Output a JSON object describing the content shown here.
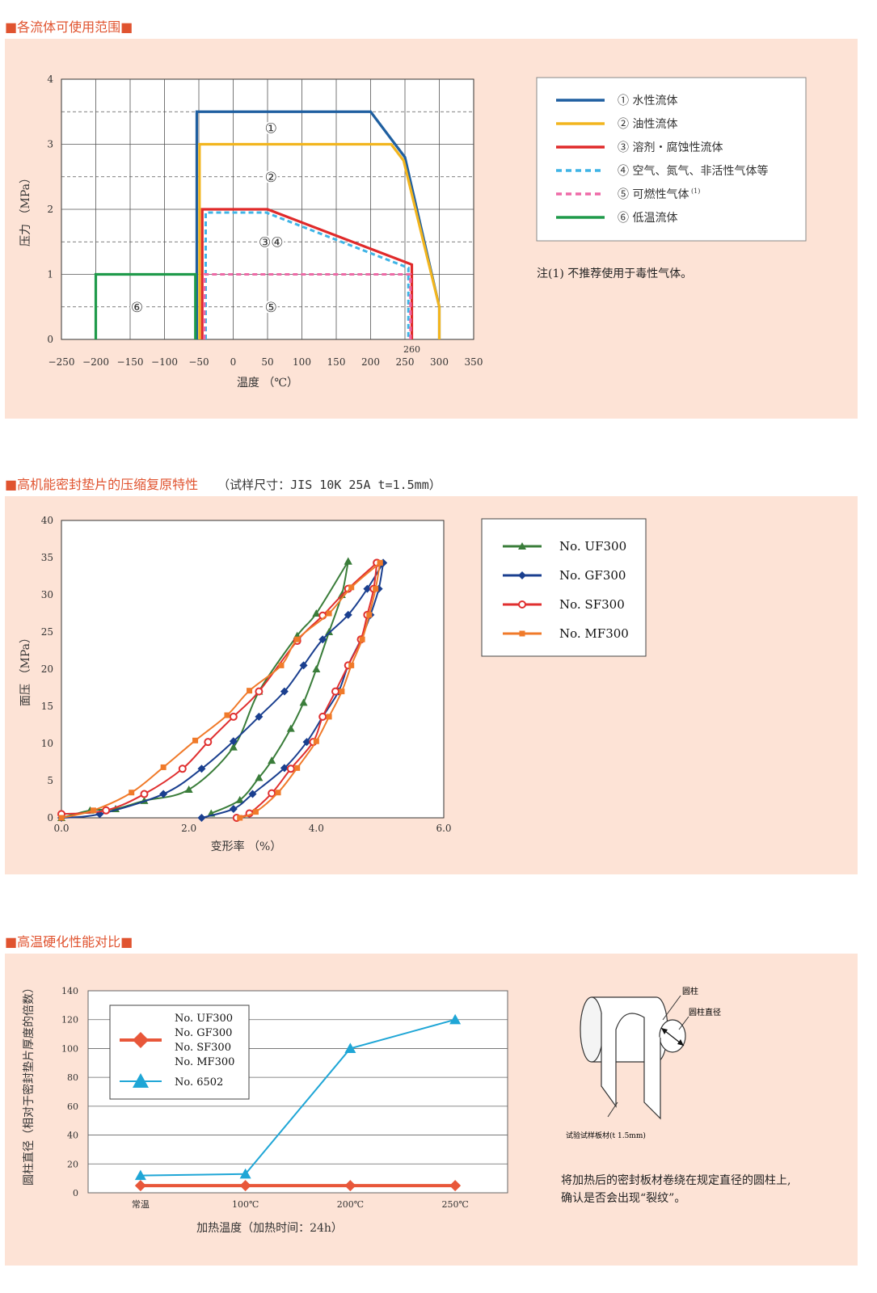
{
  "sections": {
    "s1_title": "各流体可使用范围",
    "s2_title": "高机能密封垫片的压缩复原特性",
    "s2_sub": "（试样尺寸：JIS 10K  25A  t=1.5mm）",
    "s3_title": "高温硬化性能对比"
  },
  "notes": {
    "chart1_note": "注(1)    不推荐使用于毒性气体。",
    "chart3_desc1": "将加热后的密封板材卷绕在规定直径的圆柱上,",
    "chart3_desc2": "确认是否会出现“裂纹”。",
    "diagram_cylinder": "圆柱",
    "diagram_diameter": "圆柱直径",
    "diagram_sheet": "试验试样板材(t 1.5mm)"
  },
  "colors": {
    "panel_bg": "#fde3d6",
    "title_accent": "#e0532f",
    "water": "#1f5fa0",
    "oil": "#f2b51e",
    "solvent": "#e02a2a",
    "air": "#3fb4e6",
    "flammable": "#ee6aa7",
    "lowtemp": "#1f9a4a",
    "uf": "#3a7d3a",
    "gf": "#1a3f8f",
    "sf": "#e03030",
    "mf": "#f07a2a",
    "n6502": "#1fa6d6",
    "base": "#e8573a"
  },
  "chart_data": [
    {
      "type": "line",
      "xlabel": "温度 （℃）",
      "ylabel": "压力 （MPa）",
      "xlim": [
        -250,
        350
      ],
      "ylim": [
        0,
        4
      ],
      "x_ticks": [
        "−250",
        "−200",
        "−150",
        "−100",
        "−50",
        "0",
        "50",
        "100",
        "150",
        "200",
        "250",
        "300",
        "350"
      ],
      "y_ticks": [
        "0",
        "1",
        "2",
        "3",
        "4"
      ],
      "extra_tick": "260",
      "series": [
        {
          "name": "① 水性流体",
          "label": "①",
          "color_key": "water",
          "dash": false,
          "points": [
            [
              -53,
              0
            ],
            [
              -53,
              3.5
            ],
            [
              200,
              3.5
            ],
            [
              250,
              2.8
            ],
            [
              300,
              0.5
            ],
            [
              300,
              0
            ]
          ]
        },
        {
          "name": "② 油性流体",
          "label": "②",
          "color_key": "oil",
          "dash": false,
          "points": [
            [
              -49,
              0
            ],
            [
              -49,
              3.0
            ],
            [
              230,
              3.0
            ],
            [
              248,
              2.75
            ],
            [
              300,
              0.5
            ],
            [
              300,
              0
            ]
          ]
        },
        {
          "name": "③ 溶剂・腐蚀性流体",
          "label": "③④",
          "color_key": "solvent",
          "dash": false,
          "points": [
            [
              -45,
              0
            ],
            [
              -45,
              2.0
            ],
            [
              50,
              2.0
            ],
            [
              260,
              1.15
            ],
            [
              260,
              0
            ]
          ]
        },
        {
          "name": "④ 空气、氮气、非活性气体等",
          "color_key": "air",
          "dash": true,
          "points": [
            [
              -40,
              0
            ],
            [
              -40,
              1.95
            ],
            [
              48,
              1.95
            ],
            [
              255,
              1.1
            ],
            [
              255,
              0
            ]
          ]
        },
        {
          "name": "⑤ 可燃性气体",
          "superscript": "(1)",
          "label": "⑤",
          "color_key": "flammable",
          "dash": true,
          "points": [
            [
              -42,
              0
            ],
            [
              -42,
              1.0
            ],
            [
              258,
              1.0
            ],
            [
              258,
              0
            ]
          ]
        },
        {
          "name": "⑥ 低温流体",
          "label": "⑥",
          "color_key": "lowtemp",
          "dash": false,
          "points": [
            [
              -200,
              0
            ],
            [
              -200,
              1.0
            ],
            [
              -55,
              1.0
            ],
            [
              -55,
              0
            ]
          ]
        }
      ]
    },
    {
      "type": "line",
      "xlabel": "变形率 （%）",
      "ylabel": "面压 （MPa）",
      "xlim": [
        0,
        6
      ],
      "ylim": [
        0,
        40
      ],
      "x_ticks": [
        "0.0",
        "2.0",
        "4.0",
        "6.0"
      ],
      "y_ticks": [
        "0",
        "5",
        "10",
        "15",
        "20",
        "25",
        "30",
        "35",
        "40"
      ],
      "series": [
        {
          "name": "No. UF300",
          "color_key": "uf",
          "marker": "triangle",
          "loading": [
            [
              0,
              0
            ],
            [
              0.45,
              1
            ],
            [
              0.85,
              1.2
            ],
            [
              1.3,
              2.3
            ],
            [
              2.0,
              3.8
            ],
            [
              2.7,
              9.5
            ],
            [
              3.1,
              17
            ],
            [
              3.7,
              24.5
            ],
            [
              4.0,
              27.5
            ],
            [
              4.5,
              34.5
            ]
          ],
          "unloading": [
            [
              4.5,
              34.5
            ],
            [
              4.4,
              30
            ],
            [
              4.2,
              25
            ],
            [
              4.0,
              20
            ],
            [
              3.8,
              15.5
            ],
            [
              3.6,
              12
            ],
            [
              3.3,
              7.7
            ],
            [
              3.1,
              5.4
            ],
            [
              2.8,
              2.4
            ],
            [
              2.35,
              0.6
            ]
          ]
        },
        {
          "name": "No. GF300",
          "color_key": "gf",
          "marker": "diamond",
          "loading": [
            [
              0,
              0
            ],
            [
              0.6,
              0.5
            ],
            [
              1.6,
              3.2
            ],
            [
              2.2,
              6.6
            ],
            [
              2.7,
              10.3
            ],
            [
              3.1,
              13.6
            ],
            [
              3.5,
              17
            ],
            [
              3.8,
              20.5
            ],
            [
              4.1,
              24
            ],
            [
              4.5,
              27.3
            ],
            [
              4.8,
              30.8
            ],
            [
              5.05,
              34.3
            ]
          ],
          "unloading": [
            [
              5.05,
              34.3
            ],
            [
              4.98,
              30.8
            ],
            [
              4.85,
              27.3
            ],
            [
              4.7,
              24
            ],
            [
              4.5,
              20.5
            ],
            [
              4.35,
              17
            ],
            [
              4.1,
              13.6
            ],
            [
              3.85,
              10.2
            ],
            [
              3.5,
              6.7
            ],
            [
              3.0,
              3.2
            ],
            [
              2.7,
              1.2
            ],
            [
              2.2,
              0
            ]
          ]
        },
        {
          "name": "No. SF300",
          "color_key": "sf",
          "marker": "circle",
          "loading": [
            [
              0,
              0.5
            ],
            [
              0.7,
              1
            ],
            [
              1.3,
              3.2
            ],
            [
              1.9,
              6.6
            ],
            [
              2.3,
              10.2
            ],
            [
              2.7,
              13.6
            ],
            [
              3.1,
              17
            ],
            [
              3.7,
              23.8
            ],
            [
              4.1,
              27.2
            ],
            [
              4.5,
              30.8
            ],
            [
              4.95,
              34.3
            ]
          ],
          "unloading": [
            [
              4.95,
              34.3
            ],
            [
              4.9,
              30.8
            ],
            [
              4.8,
              27.3
            ],
            [
              4.7,
              24
            ],
            [
              4.5,
              20.5
            ],
            [
              4.3,
              17
            ],
            [
              4.1,
              13.6
            ],
            [
              3.95,
              10.2
            ],
            [
              3.6,
              6.6
            ],
            [
              3.3,
              3.3
            ],
            [
              2.95,
              0.6
            ],
            [
              2.75,
              0
            ]
          ]
        },
        {
          "name": "No. MF300",
          "color_key": "mf",
          "marker": "square",
          "loading": [
            [
              0,
              0
            ],
            [
              0.5,
              1
            ],
            [
              1.1,
              3.4
            ],
            [
              1.6,
              6.8
            ],
            [
              2.1,
              10.4
            ],
            [
              2.6,
              13.8
            ],
            [
              2.95,
              17.1
            ],
            [
              3.45,
              20.5
            ],
            [
              3.7,
              24
            ],
            [
              4.2,
              27.5
            ],
            [
              4.55,
              31
            ],
            [
              5.0,
              34.3
            ]
          ],
          "unloading": [
            [
              5.0,
              34.3
            ],
            [
              4.93,
              30.8
            ],
            [
              4.83,
              27.3
            ],
            [
              4.72,
              24
            ],
            [
              4.55,
              20.5
            ],
            [
              4.4,
              17
            ],
            [
              4.2,
              13.6
            ],
            [
              4.0,
              10.3
            ],
            [
              3.7,
              6.7
            ],
            [
              3.4,
              3.4
            ],
            [
              3.05,
              0.8
            ],
            [
              2.8,
              0
            ]
          ]
        }
      ]
    },
    {
      "type": "line",
      "xlabel": "加热温度（加热时间：24h）",
      "ylabel": "圆柱直径（相对于密封垫片厚度的倍数）",
      "ylim": [
        0,
        140
      ],
      "categories": [
        "常温",
        "100℃",
        "200℃",
        "250℃"
      ],
      "y_ticks": [
        "0",
        "20",
        "40",
        "60",
        "80",
        "100",
        "120",
        "140"
      ],
      "series": [
        {
          "name": "No. UF300\nNo. GF300\nNo. SF300\nNo. MF300",
          "legend_lines": [
            "No. UF300",
            "No. GF300",
            "No. SF300",
            "No. MF300"
          ],
          "color_key": "base",
          "marker": "diamond",
          "values": [
            5,
            5,
            5,
            5
          ]
        },
        {
          "name": "No. 6502",
          "legend_lines": [
            "No. 6502"
          ],
          "color_key": "n6502",
          "marker": "triangle",
          "values": [
            12,
            13,
            100,
            120
          ]
        }
      ]
    }
  ]
}
